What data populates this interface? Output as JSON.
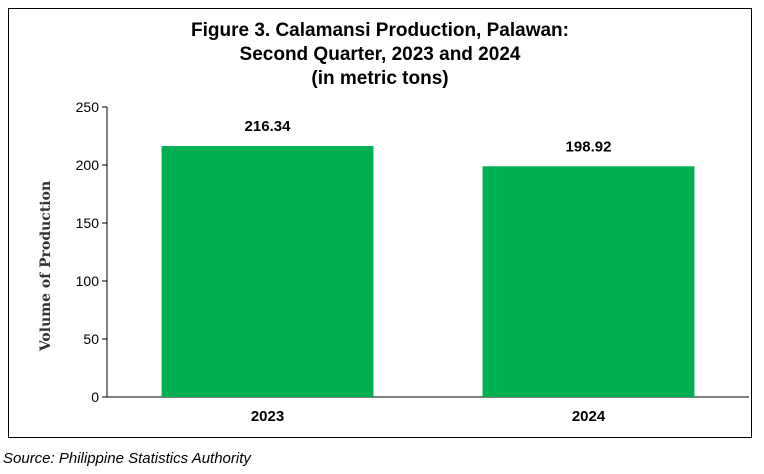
{
  "chart_data": {
    "type": "bar",
    "title": [
      "Figure 3. Calamansi Production, Palawan:",
      "Second Quarter, 2023 and 2024",
      "(in metric tons)"
    ],
    "xlabel": "",
    "ylabel": "Volume of Production",
    "categories": [
      "2023",
      "2024"
    ],
    "values": [
      216.34,
      198.92
    ],
    "data_labels": [
      "216.34",
      "198.92"
    ],
    "ylim": [
      0,
      250
    ],
    "yticks": [
      0,
      50,
      100,
      150,
      200,
      250
    ],
    "bar_color": "#00b050",
    "grid": false,
    "legend": "none"
  },
  "source": "Source: Philippine Statistics Authority"
}
